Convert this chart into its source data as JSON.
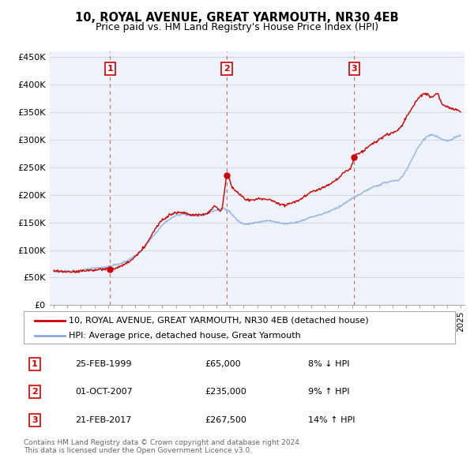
{
  "title": "10, ROYAL AVENUE, GREAT YARMOUTH, NR30 4EB",
  "subtitle": "Price paid vs. HM Land Registry's House Price Index (HPI)",
  "legend_line1": "10, ROYAL AVENUE, GREAT YARMOUTH, NR30 4EB (detached house)",
  "legend_line2": "HPI: Average price, detached house, Great Yarmouth",
  "footer1": "Contains HM Land Registry data © Crown copyright and database right 2024.",
  "footer2": "This data is licensed under the Open Government Licence v3.0.",
  "sales": [
    {
      "label": "1",
      "date": "25-FEB-1999",
      "price": 65000,
      "pct": "8%",
      "dir": "↓",
      "year": 1999.15
    },
    {
      "label": "2",
      "date": "01-OCT-2007",
      "price": 235000,
      "pct": "9%",
      "dir": "↑",
      "year": 2007.75
    },
    {
      "label": "3",
      "date": "21-FEB-2017",
      "price": 267500,
      "pct": "14%",
      "dir": "↑",
      "year": 2017.15
    }
  ],
  "ylim": [
    0,
    460000
  ],
  "yticks": [
    0,
    50000,
    100000,
    150000,
    200000,
    250000,
    300000,
    350000,
    400000,
    450000
  ],
  "ytick_labels": [
    "£0",
    "£50K",
    "£100K",
    "£150K",
    "£200K",
    "£250K",
    "£300K",
    "£350K",
    "£400K",
    "£450K"
  ],
  "red_color": "#cc0000",
  "blue_color": "#88aadd",
  "background_color": "#eef2fa",
  "grid_color": "#cccccc",
  "xlim_left": 1994.7,
  "xlim_right": 2025.3,
  "hpi_data_x": [
    1995.0,
    1995.5,
    1996.0,
    1996.5,
    1997.0,
    1997.5,
    1998.0,
    1998.5,
    1999.0,
    1999.5,
    2000.0,
    2000.5,
    2001.0,
    2001.5,
    2002.0,
    2002.5,
    2003.0,
    2003.5,
    2004.0,
    2004.5,
    2005.0,
    2005.5,
    2006.0,
    2006.5,
    2007.0,
    2007.5,
    2008.0,
    2008.5,
    2009.0,
    2009.5,
    2010.0,
    2010.5,
    2011.0,
    2011.5,
    2012.0,
    2012.5,
    2013.0,
    2013.5,
    2014.0,
    2014.5,
    2015.0,
    2015.5,
    2016.0,
    2016.5,
    2017.0,
    2017.5,
    2018.0,
    2018.5,
    2019.0,
    2019.5,
    2020.0,
    2020.5,
    2021.0,
    2021.5,
    2022.0,
    2022.5,
    2023.0,
    2023.5,
    2024.0,
    2024.5,
    2025.0
  ],
  "hpi_data_y": [
    62000,
    61000,
    61500,
    62000,
    63000,
    65000,
    67000,
    68000,
    70000,
    73000,
    76000,
    82000,
    90000,
    100000,
    115000,
    130000,
    145000,
    155000,
    162000,
    165000,
    163000,
    162000,
    163000,
    168000,
    172000,
    175000,
    168000,
    155000,
    148000,
    148000,
    150000,
    152000,
    153000,
    150000,
    148000,
    149000,
    151000,
    155000,
    160000,
    163000,
    167000,
    172000,
    178000,
    185000,
    193000,
    200000,
    207000,
    213000,
    218000,
    222000,
    225000,
    228000,
    245000,
    268000,
    290000,
    305000,
    308000,
    302000,
    298000,
    302000,
    308000
  ],
  "red_data_x": [
    1995.0,
    1995.5,
    1996.0,
    1996.5,
    1997.0,
    1997.5,
    1998.0,
    1998.5,
    1999.0,
    1999.15,
    1999.5,
    2000.0,
    2000.5,
    2001.0,
    2001.5,
    2002.0,
    2002.5,
    2003.0,
    2003.5,
    2004.0,
    2004.5,
    2005.0,
    2005.5,
    2006.0,
    2006.5,
    2007.0,
    2007.5,
    2007.75,
    2008.0,
    2008.5,
    2009.0,
    2009.5,
    2010.0,
    2010.5,
    2011.0,
    2011.5,
    2012.0,
    2012.5,
    2013.0,
    2013.5,
    2014.0,
    2014.5,
    2015.0,
    2015.5,
    2016.0,
    2016.5,
    2017.0,
    2017.15,
    2017.5,
    2018.0,
    2018.5,
    2019.0,
    2019.5,
    2020.0,
    2020.5,
    2021.0,
    2021.5,
    2022.0,
    2022.5,
    2023.0,
    2023.3,
    2023.5,
    2024.0,
    2024.5,
    2025.0
  ],
  "red_data_y": [
    62000,
    61000,
    60500,
    61000,
    62000,
    63000,
    64000,
    64500,
    65500,
    65000,
    67000,
    71000,
    78000,
    88000,
    100000,
    118000,
    138000,
    155000,
    163000,
    168000,
    168000,
    165000,
    163000,
    165000,
    170000,
    178000,
    188000,
    235000,
    225000,
    205000,
    195000,
    190000,
    192000,
    193000,
    190000,
    185000,
    182000,
    185000,
    190000,
    197000,
    205000,
    210000,
    215000,
    222000,
    230000,
    242000,
    255000,
    267500,
    275000,
    283000,
    292000,
    300000,
    308000,
    312000,
    320000,
    340000,
    360000,
    378000,
    382000,
    378000,
    383000,
    372000,
    360000,
    355000,
    352000
  ]
}
